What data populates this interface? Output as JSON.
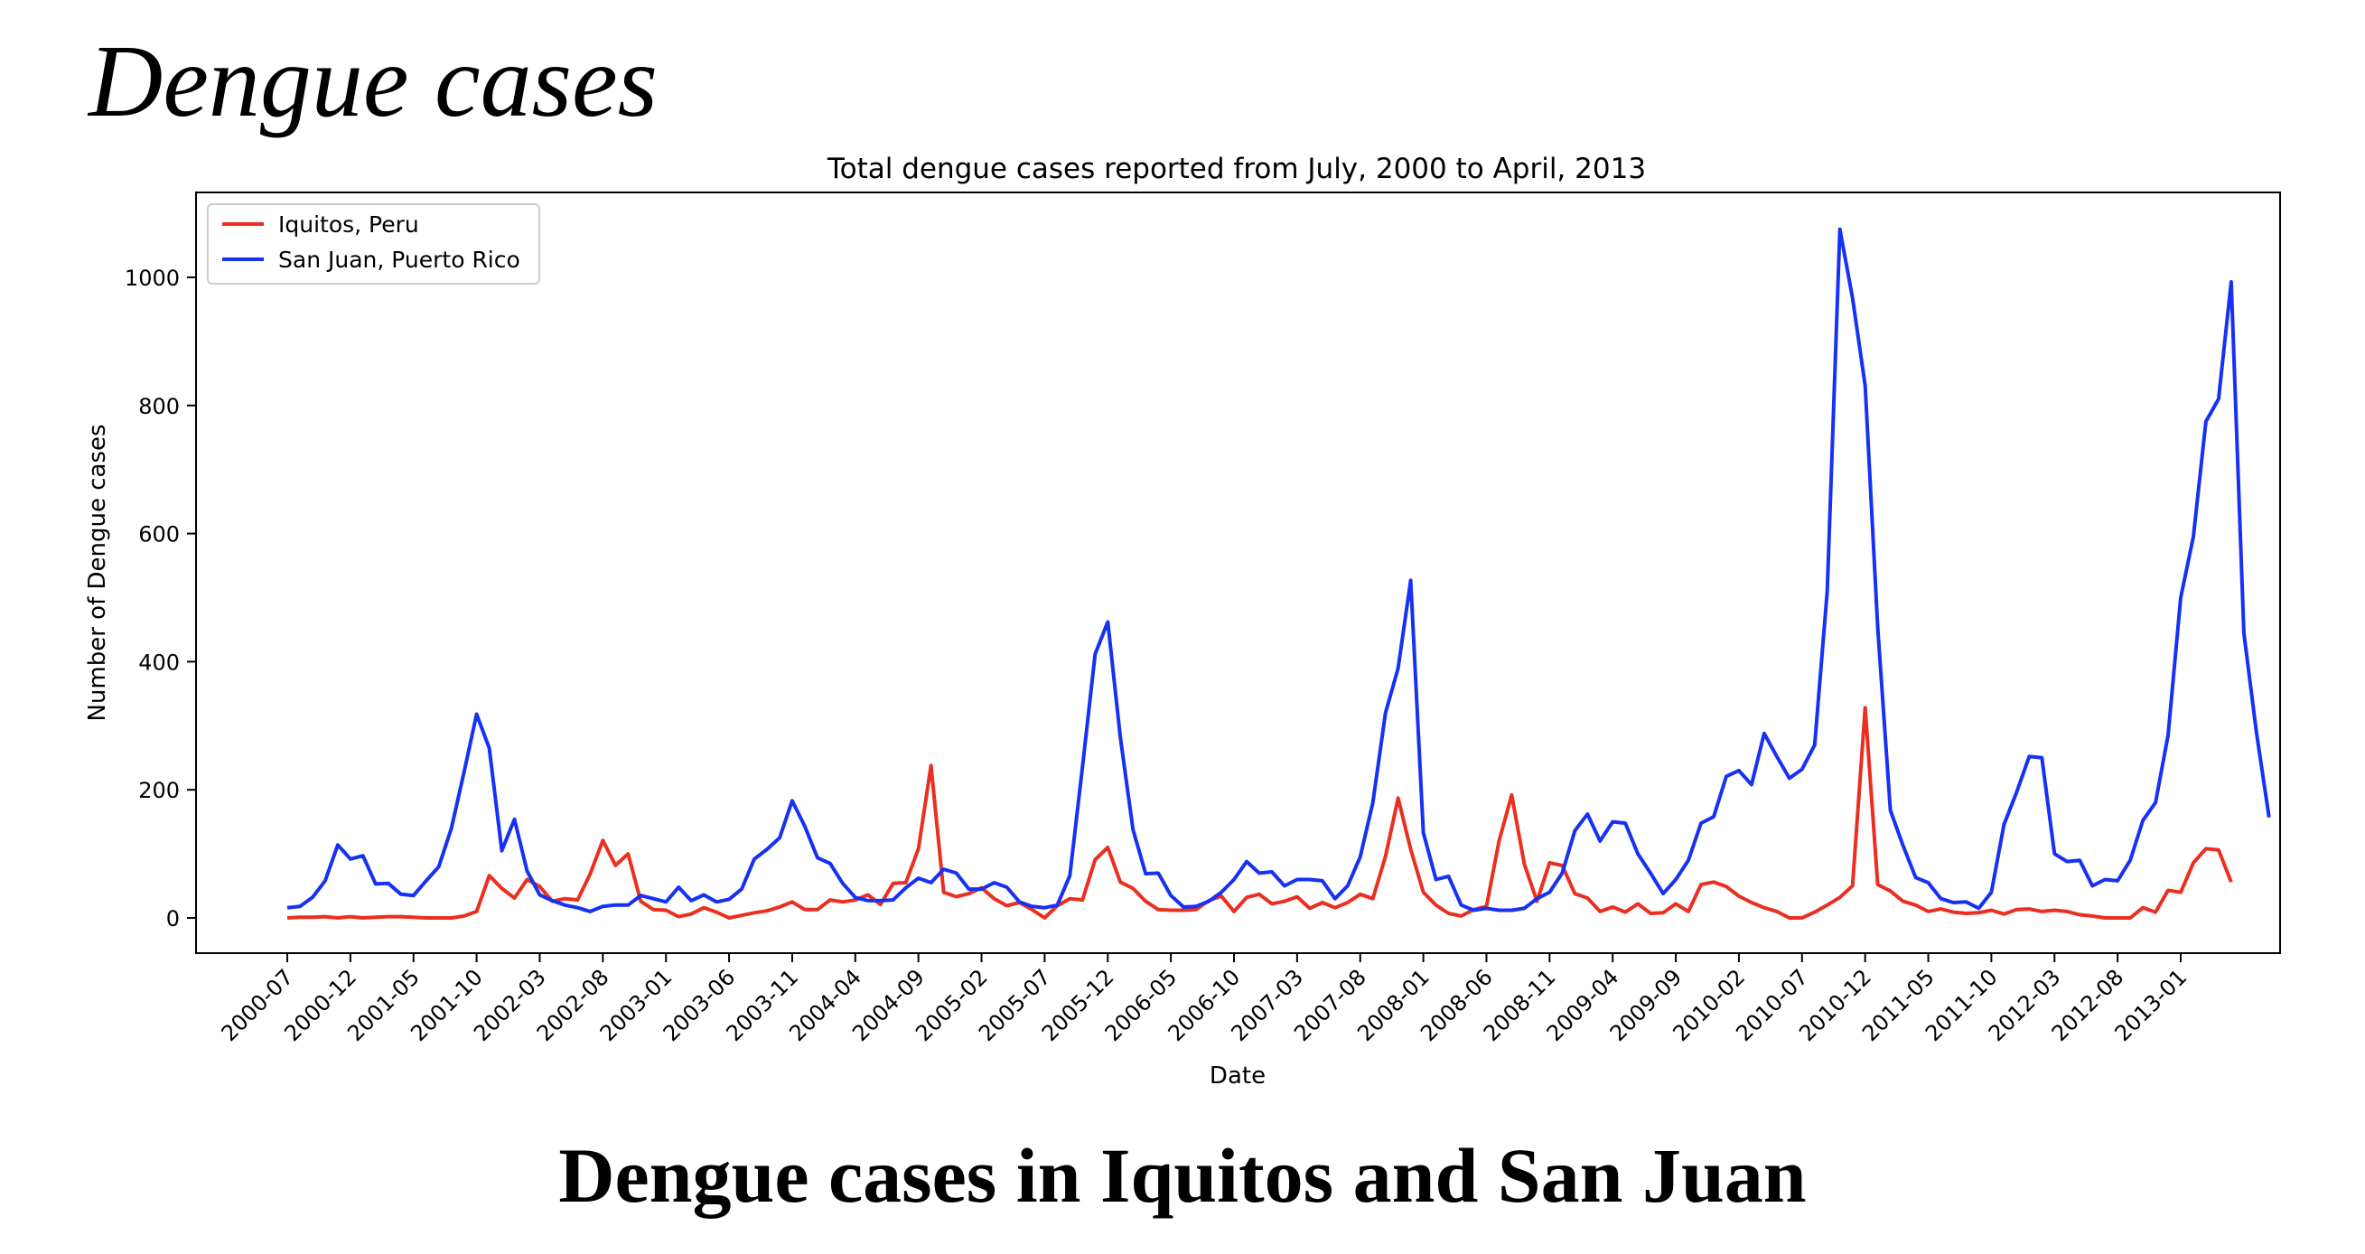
{
  "slide": {
    "title": "Dengue cases",
    "caption": "Dengue cases in Iquitos and San Juan"
  },
  "chart_data": {
    "type": "line",
    "title": "Total dengue cases reported from July, 2000 to April, 2013",
    "xlabel": "Date",
    "ylabel": "Number of Dengue cases",
    "ylim": [
      -55,
      1110
    ],
    "yticks": [
      0,
      200,
      400,
      600,
      800,
      1000
    ],
    "x_start": "2000-07",
    "xticks": [
      "2000-07",
      "2000-12",
      "2001-05",
      "2001-10",
      "2002-03",
      "2002-08",
      "2003-01",
      "2003-06",
      "2003-11",
      "2004-04",
      "2004-09",
      "2005-02",
      "2005-07",
      "2005-12",
      "2006-05",
      "2006-10",
      "2007-03",
      "2007-08",
      "2008-01",
      "2008-06",
      "2008-11",
      "2009-04",
      "2009-09",
      "2010-02",
      "2010-07",
      "2010-12",
      "2011-05",
      "2011-10",
      "2012-03",
      "2012-08",
      "2013-01"
    ],
    "grid": false,
    "legend_position": "top-left",
    "series": [
      {
        "name": "Iquitos, Peru",
        "color": "#ea2f20",
        "values": [
          0,
          1,
          1,
          2,
          0,
          2,
          0,
          1,
          2,
          2,
          1,
          0,
          0,
          0,
          3,
          10,
          66,
          46,
          31,
          60,
          49,
          26,
          30,
          28,
          69,
          121,
          82,
          100,
          26,
          13,
          12,
          2,
          6,
          16,
          9,
          0,
          4,
          8,
          11,
          17,
          25,
          13,
          13,
          28,
          25,
          28,
          36,
          21,
          54,
          55,
          108,
          238,
          40,
          33,
          38,
          47,
          30,
          19,
          24,
          13,
          0,
          19,
          30,
          28,
          91,
          110,
          56,
          46,
          26,
          13,
          12,
          12,
          13,
          27,
          34,
          10,
          32,
          37,
          22,
          26,
          33,
          15,
          24,
          16,
          24,
          37,
          30,
          96,
          187,
          107,
          40,
          20,
          7,
          3,
          13,
          18,
          120,
          192,
          84,
          26,
          86,
          82,
          38,
          31,
          10,
          17,
          9,
          22,
          7,
          8,
          22,
          10,
          52,
          56,
          49,
          34,
          24,
          16,
          10,
          0,
          0,
          9,
          20,
          32,
          50,
          328,
          52,
          42,
          26,
          20,
          10,
          14,
          9,
          7,
          8,
          12,
          6,
          13,
          14,
          10,
          12,
          10,
          5,
          3,
          0,
          0,
          0,
          16,
          9,
          43,
          40,
          86,
          108,
          106,
          56
        ]
      },
      {
        "name": "San Juan, Puerto Rico",
        "color": "#1631f4",
        "values": [
          16,
          18,
          32,
          58,
          114,
          92,
          97,
          53,
          54,
          37,
          35,
          58,
          80,
          140,
          227,
          318,
          265,
          105,
          154,
          73,
          36,
          27,
          20,
          16,
          10,
          18,
          20,
          20,
          35,
          30,
          25,
          48,
          27,
          36,
          25,
          29,
          45,
          92,
          107,
          125,
          183,
          143,
          94,
          85,
          54,
          32,
          27,
          27,
          28,
          47,
          62,
          55,
          76,
          70,
          45,
          45,
          55,
          48,
          25,
          18,
          16,
          20,
          66,
          236,
          412,
          462,
          282,
          138,
          69,
          70,
          35,
          17,
          18,
          26,
          40,
          60,
          88,
          70,
          72,
          50,
          60,
          60,
          58,
          30,
          50,
          95,
          180,
          320,
          390,
          527,
          133,
          60,
          65,
          20,
          12,
          15,
          12,
          12,
          15,
          30,
          40,
          70,
          136,
          162,
          120,
          150,
          148,
          100,
          70,
          38,
          60,
          90,
          148,
          158,
          221,
          230,
          208,
          288,
          252,
          218,
          232,
          270,
          510,
          1075,
          968,
          831,
          453,
          168,
          113,
          63,
          55,
          30,
          24,
          25,
          15,
          40,
          146,
          196,
          252,
          250,
          100,
          88,
          90,
          50,
          60,
          58,
          90,
          152,
          180,
          285,
          500,
          595,
          775,
          810,
          993,
          445,
          290,
          157
        ]
      }
    ]
  }
}
